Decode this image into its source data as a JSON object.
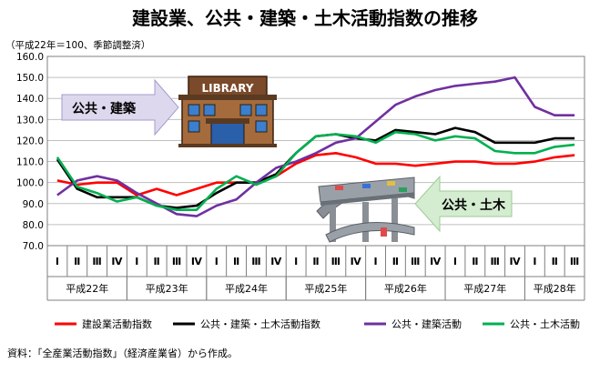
{
  "title": "建設業、公共・建築・土木活動指数の推移",
  "unit_note": "（平成22年＝100、季節調整済）",
  "source": "資料：「全産業活動指数」（経済産業省）から作成。",
  "callouts": {
    "building": "公共・建築",
    "civil": "公共・土木",
    "library_sign": "LIBRARY"
  },
  "chart_data": {
    "type": "line",
    "ylim": [
      70,
      160
    ],
    "yticks": [
      "70.0",
      "80.0",
      "90.0",
      "100.0",
      "110.0",
      "120.0",
      "130.0",
      "140.0",
      "150.0",
      "160.0"
    ],
    "categories": [
      "Ⅰ",
      "Ⅱ",
      "Ⅲ",
      "Ⅳ",
      "Ⅰ",
      "Ⅱ",
      "Ⅲ",
      "Ⅳ",
      "Ⅰ",
      "Ⅱ",
      "Ⅲ",
      "Ⅳ",
      "Ⅰ",
      "Ⅱ",
      "Ⅲ",
      "Ⅳ",
      "Ⅰ",
      "Ⅱ",
      "Ⅲ",
      "Ⅳ",
      "Ⅰ",
      "Ⅱ",
      "Ⅲ",
      "Ⅳ",
      "Ⅰ",
      "Ⅱ",
      "Ⅲ"
    ],
    "year_groups": [
      {
        "label": "平成22年",
        "start": 0,
        "count": 4
      },
      {
        "label": "平成23年",
        "start": 4,
        "count": 4
      },
      {
        "label": "平成24年",
        "start": 8,
        "count": 4
      },
      {
        "label": "平成25年",
        "start": 12,
        "count": 4
      },
      {
        "label": "平成26年",
        "start": 16,
        "count": 4
      },
      {
        "label": "平成27年",
        "start": 20,
        "count": 4
      },
      {
        "label": "平成28年",
        "start": 24,
        "count": 3
      }
    ],
    "grid": true,
    "legend_position": "bottom",
    "series": [
      {
        "name": "建設業活動指数",
        "color": "#ff0000",
        "values": [
          101,
          99,
          100,
          100,
          94,
          97,
          94,
          97,
          100,
          100,
          100,
          103,
          109,
          113,
          114,
          112,
          109,
          109,
          108,
          109,
          110,
          110,
          109,
          109,
          110,
          112,
          113
        ]
      },
      {
        "name": "公共・建築・土木活動指数",
        "color": "#000000",
        "values": [
          111,
          97,
          93,
          93,
          93,
          89,
          88,
          89,
          95,
          100,
          100,
          104,
          114,
          122,
          123,
          121,
          120,
          125,
          124,
          123,
          126,
          124,
          119,
          119,
          119,
          121,
          121
        ]
      },
      {
        "name": "公共・建築活動",
        "color": "#7030a0",
        "values": [
          94,
          101,
          103,
          101,
          95,
          90,
          85,
          84,
          89,
          92,
          100,
          107,
          110,
          114,
          119,
          121,
          129,
          137,
          141,
          144,
          146,
          147,
          148,
          150,
          136,
          132,
          132
        ]
      },
      {
        "name": "公共・土木活動",
        "color": "#00b050",
        "values": [
          112,
          98,
          95,
          91,
          93,
          89,
          87,
          87,
          97,
          103,
          99,
          103,
          114,
          122,
          123,
          122,
          119,
          124,
          123,
          120,
          122,
          121,
          115,
          114,
          114,
          117,
          118
        ]
      }
    ]
  }
}
